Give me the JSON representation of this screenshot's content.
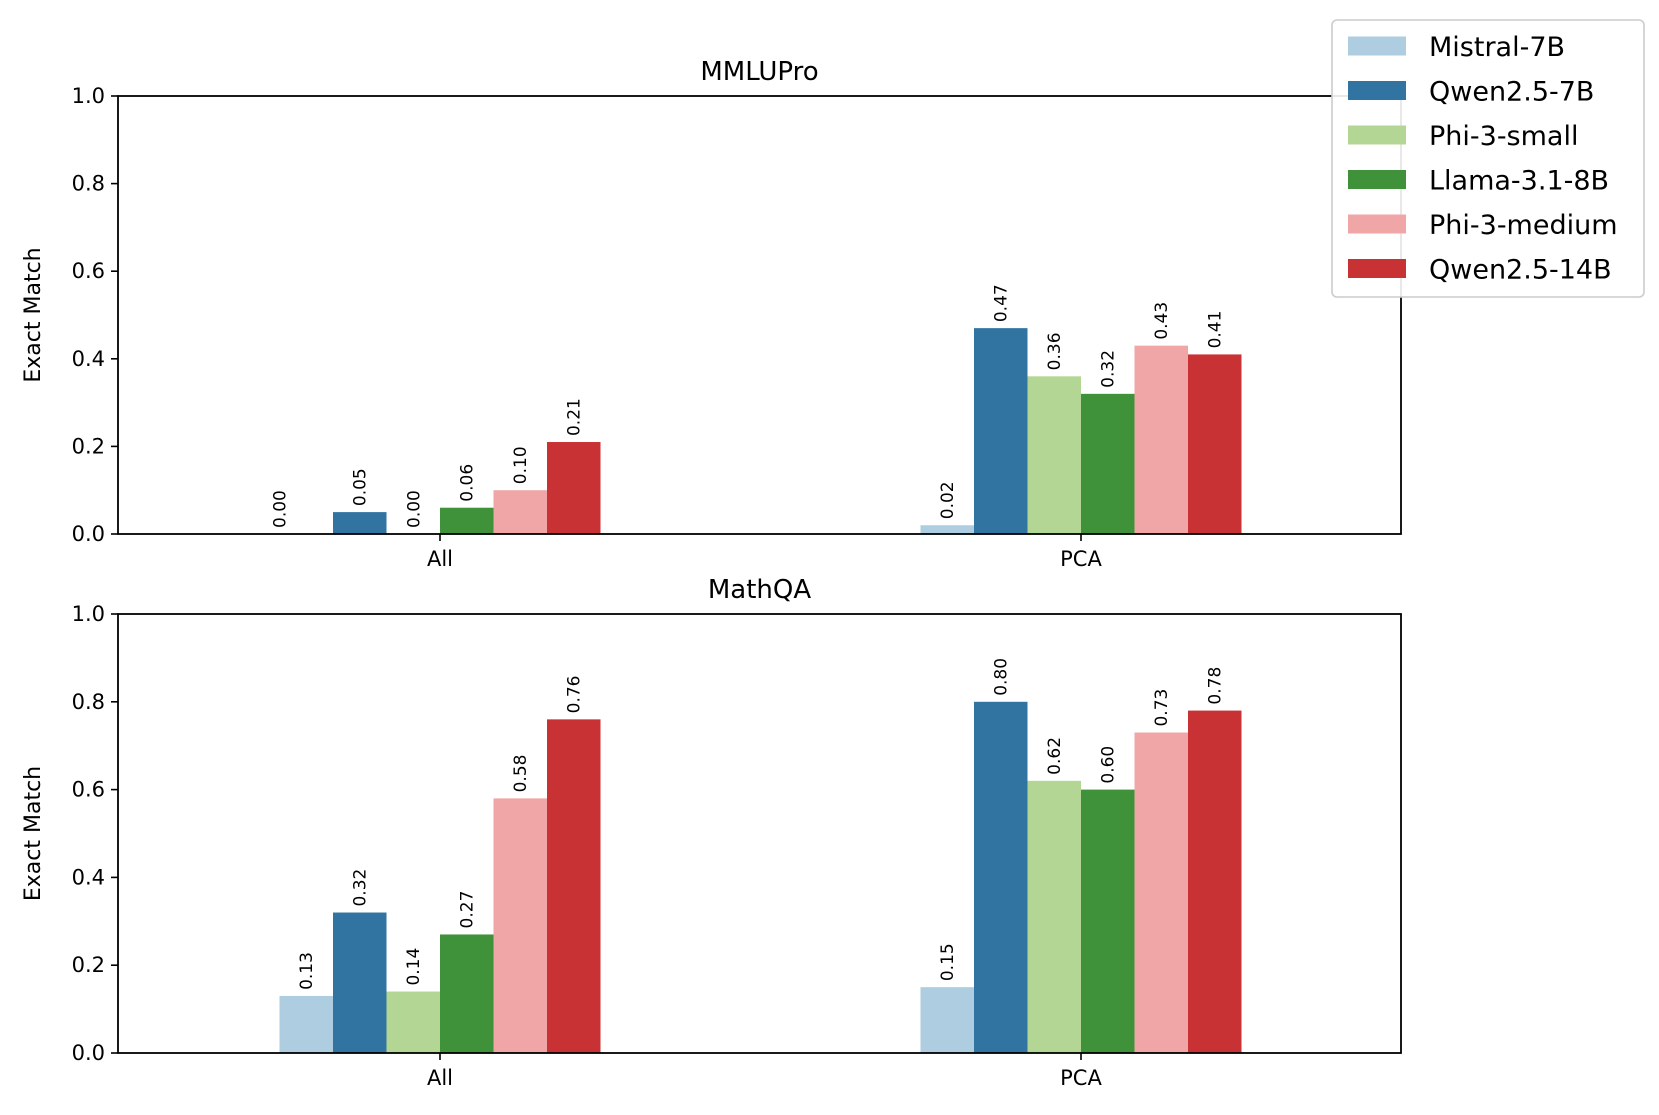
{
  "chart_data": [
    {
      "type": "bar",
      "title": "MMLUPro",
      "xlabel": "",
      "ylabel": "Exact Match",
      "ylim": [
        0,
        1.0
      ],
      "yticks": [
        "0.0",
        "0.2",
        "0.4",
        "0.6",
        "0.8",
        "1.0"
      ],
      "categories": [
        "All",
        "PCA"
      ],
      "series": [
        {
          "name": "Mistral-7B",
          "color": "#aecde1",
          "values": [
            0.0,
            0.02
          ],
          "labels": [
            "",
            "0.02"
          ]
        },
        {
          "name": "Qwen2.5-7B",
          "color": "#3274a1",
          "values": [
            0.05,
            0.47
          ],
          "labels": [
            "0.05",
            "0.47"
          ]
        },
        {
          "name": "Phi-3-small",
          "color": "#b4d694",
          "values": [
            0.0,
            0.36
          ],
          "labels": [
            "0.00",
            "0.36"
          ]
        },
        {
          "name": "Llama-3.1-8B",
          "color": "#3f913a",
          "values": [
            0.06,
            0.32
          ],
          "labels": [
            "0.06",
            "0.32"
          ]
        },
        {
          "name": "Phi-3-medium",
          "color": "#f0a6a6",
          "values": [
            0.1,
            0.43
          ],
          "labels": [
            "0.10",
            "0.43"
          ]
        },
        {
          "name": "Qwen2.5-14B",
          "color": "#c93234",
          "values": [
            0.21,
            0.41
          ],
          "labels": [
            "0.21",
            "0.41"
          ]
        }
      ],
      "extra_labels": [
        {
          "category": 0,
          "offset": -0.5,
          "text": "0.00"
        }
      ]
    },
    {
      "type": "bar",
      "title": "MathQA",
      "xlabel": "",
      "ylabel": "Exact Match",
      "ylim": [
        0,
        1.0
      ],
      "yticks": [
        "0.0",
        "0.2",
        "0.4",
        "0.6",
        "0.8",
        "1.0"
      ],
      "categories": [
        "All",
        "PCA"
      ],
      "series": [
        {
          "name": "Mistral-7B",
          "color": "#aecde1",
          "values": [
            0.13,
            0.15
          ],
          "labels": [
            "0.13",
            "0.15"
          ]
        },
        {
          "name": "Qwen2.5-7B",
          "color": "#3274a1",
          "values": [
            0.32,
            0.8
          ],
          "labels": [
            "0.32",
            "0.80"
          ]
        },
        {
          "name": "Phi-3-small",
          "color": "#b4d694",
          "values": [
            0.14,
            0.62
          ],
          "labels": [
            "0.14",
            "0.62"
          ]
        },
        {
          "name": "Llama-3.1-8B",
          "color": "#3f913a",
          "values": [
            0.27,
            0.6
          ],
          "labels": [
            "0.27",
            "0.60"
          ]
        },
        {
          "name": "Phi-3-medium",
          "color": "#f0a6a6",
          "values": [
            0.58,
            0.73
          ],
          "labels": [
            "0.58",
            "0.73"
          ]
        },
        {
          "name": "Qwen2.5-14B",
          "color": "#c93234",
          "values": [
            0.76,
            0.78
          ],
          "labels": [
            "0.76",
            "0.78"
          ]
        }
      ],
      "extra_labels": []
    }
  ],
  "legend": {
    "placement": "top-right",
    "entries": [
      {
        "name": "Mistral-7B",
        "color": "#aecde1"
      },
      {
        "name": "Qwen2.5-7B",
        "color": "#3274a1"
      },
      {
        "name": "Phi-3-small",
        "color": "#b4d694"
      },
      {
        "name": "Llama-3.1-8B",
        "color": "#3f913a"
      },
      {
        "name": "Phi-3-medium",
        "color": "#f0a6a6"
      },
      {
        "name": "Qwen2.5-14B",
        "color": "#c93234"
      }
    ]
  }
}
